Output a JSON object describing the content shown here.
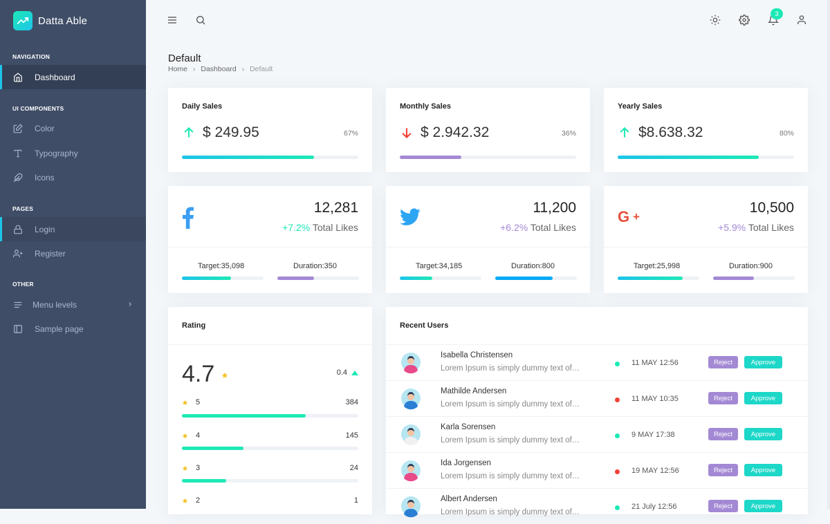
{
  "brand": {
    "name": "Datta Able"
  },
  "sidebar": {
    "sections": [
      {
        "caption": "NAVIGATION",
        "items": [
          {
            "label": "Dashboard",
            "icon": "home-icon"
          }
        ]
      },
      {
        "caption": "UI COMPONENTS",
        "items": [
          {
            "label": "Color",
            "icon": "edit-icon"
          },
          {
            "label": "Typography",
            "icon": "type-icon"
          },
          {
            "label": "Icons",
            "icon": "feather-icon"
          }
        ]
      },
      {
        "caption": "PAGES",
        "items": [
          {
            "label": "Login",
            "icon": "lock-icon"
          },
          {
            "label": "Register",
            "icon": "user-plus-icon"
          }
        ]
      },
      {
        "caption": "OTHER",
        "items": [
          {
            "label": "Menu levels",
            "icon": "menu-icon"
          },
          {
            "label": "Sample page",
            "icon": "sidebar-icon"
          }
        ]
      }
    ]
  },
  "header": {
    "notification_count": "3"
  },
  "page": {
    "title": "Default",
    "breadcrumb": [
      "Home",
      "Dashboard",
      "Default"
    ]
  },
  "sales": [
    {
      "title": "Daily Sales",
      "amount": "$ 249.95",
      "trend": "up",
      "percent": "67%",
      "progress": 0.75,
      "color": "#1de9b6"
    },
    {
      "title": "Monthly Sales",
      "amount": "$ 2.942.32",
      "trend": "down",
      "percent": "36%",
      "progress": 0.35,
      "color": "#a389d4"
    },
    {
      "title": "Yearly Sales",
      "amount": "$8.638.32",
      "trend": "up",
      "percent": "80%",
      "progress": 0.8,
      "color": "#1de9b6"
    }
  ],
  "social": [
    {
      "network": "facebook",
      "total": "12,281",
      "change": "+7.2%",
      "likes_label": "Total Likes",
      "change_color": "#1de9b6",
      "target_label": "Target:",
      "target": "35,098",
      "duration_label": "Duration:",
      "duration": "350",
      "target_progress": 0.6,
      "duration_progress": 0.45,
      "target_color": "#1de9b6",
      "duration_color": "#a389d4"
    },
    {
      "network": "twitter",
      "total": "11,200",
      "change": "+6.2%",
      "likes_label": "Total Likes",
      "change_color": "#a389d4",
      "target_label": "Target:",
      "target": "34,185",
      "duration_label": "Duration:",
      "duration": "800",
      "target_progress": 0.4,
      "duration_progress": 0.7,
      "target_color": "#1de9b6",
      "duration_color": "#04a9f5"
    },
    {
      "network": "google-plus",
      "total": "10,500",
      "change": "+5.9%",
      "likes_label": "Total Likes",
      "change_color": "#a389d4",
      "target_label": "Target:",
      "target": "25,998",
      "duration_label": "Duration:",
      "duration": "900",
      "target_progress": 0.8,
      "duration_progress": 0.5,
      "target_color": "#1de9b6",
      "duration_color": "#a389d4"
    }
  ],
  "rating": {
    "title": "Rating",
    "score": "4.7",
    "delta": "0.4",
    "rows": [
      {
        "stars": "5",
        "count": "384",
        "progress": 0.7
      },
      {
        "stars": "4",
        "count": "145",
        "progress": 0.35
      },
      {
        "stars": "3",
        "count": "24",
        "progress": 0.25
      },
      {
        "stars": "2",
        "count": "1",
        "progress": 0.02
      }
    ]
  },
  "recent_users": {
    "title": "Recent Users",
    "reject_label": "Reject",
    "approve_label": "Approve",
    "rows": [
      {
        "name": "Isabella Christensen",
        "desc": "Lorem Ipsum is simply dummy text of…",
        "date": "11 MAY 12:56",
        "status": "online"
      },
      {
        "name": "Mathilde Andersen",
        "desc": "Lorem Ipsum is simply dummy text of…",
        "date": "11 MAY 10:35",
        "status": "offline"
      },
      {
        "name": "Karla Sorensen",
        "desc": "Lorem Ipsum is simply dummy text of…",
        "date": "9 MAY 17:38",
        "status": "online"
      },
      {
        "name": "Ida Jorgensen",
        "desc": "Lorem Ipsum is simply dummy text of…",
        "date": "19 MAY 12:56",
        "status": "offline"
      },
      {
        "name": "Albert Andersen",
        "desc": "Lorem Ipsum is simply dummy text of…",
        "date": "21 July 12:56",
        "status": "online"
      }
    ]
  },
  "colors": {
    "sidebar": "#3f4d67",
    "accent": "#1de9b6",
    "purple": "#a389d4",
    "online": "#1de9b6",
    "offline": "#f44236"
  }
}
